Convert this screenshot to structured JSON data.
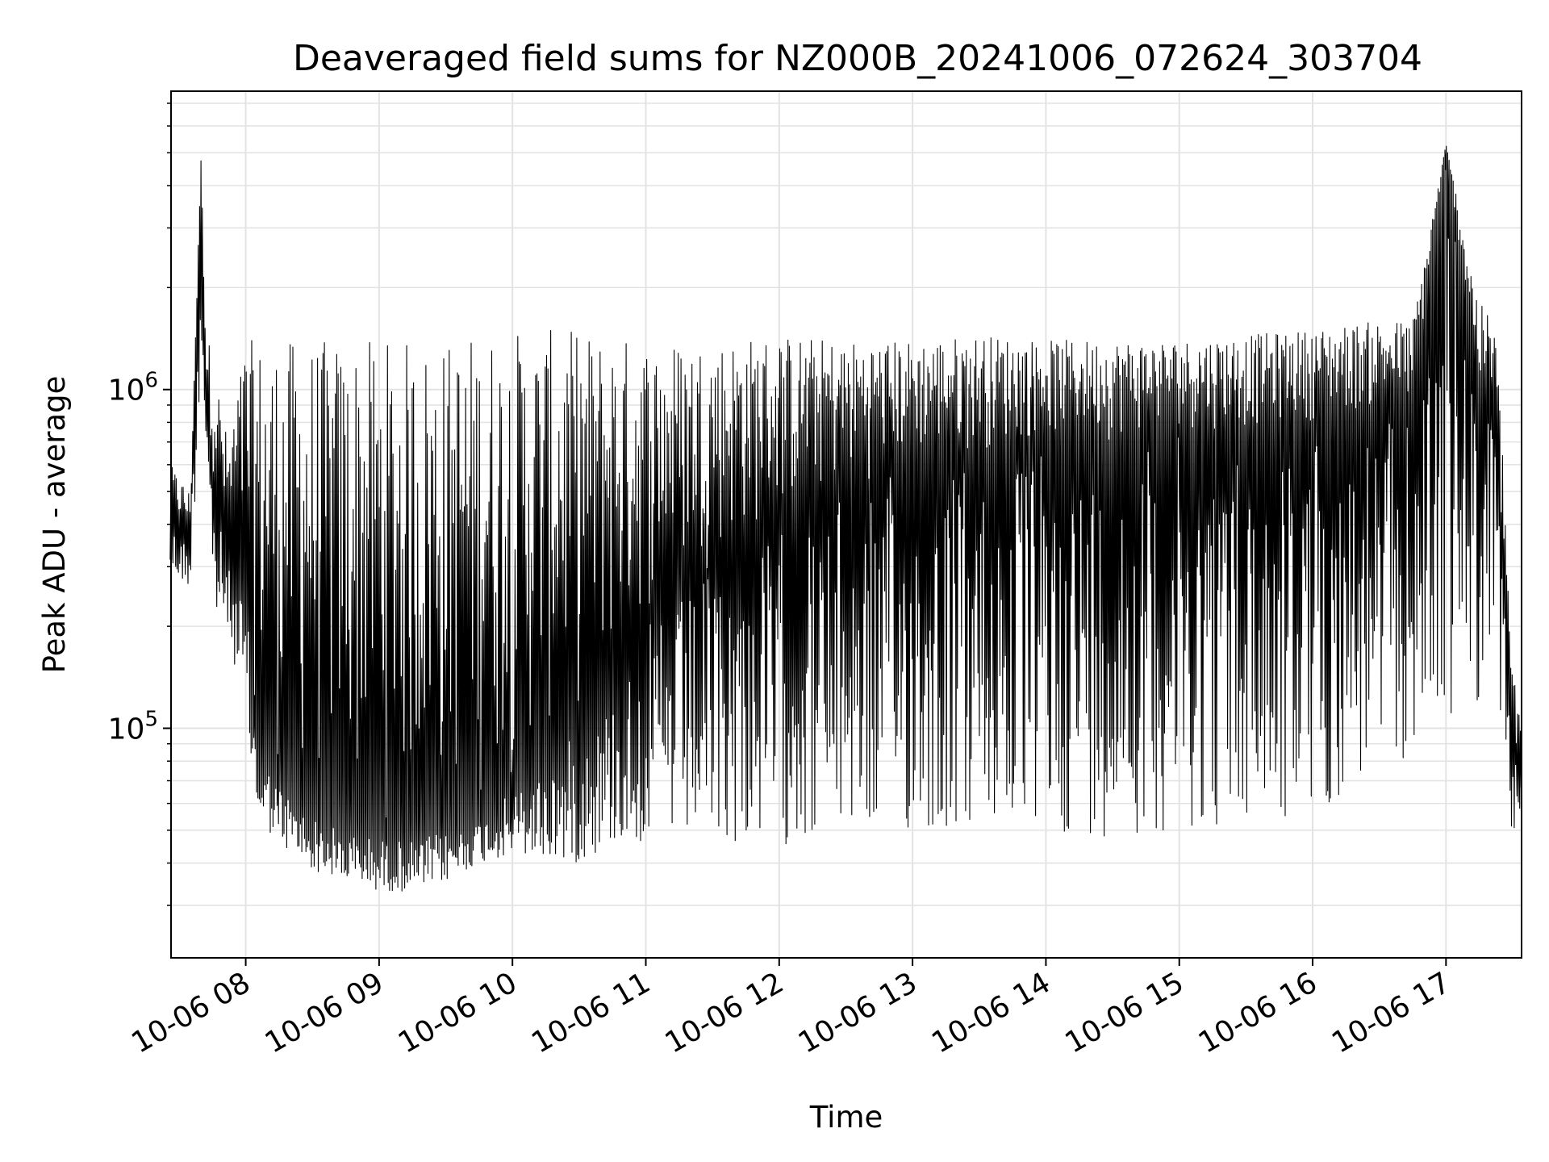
{
  "chart_data": {
    "type": "line",
    "title": "Deaveraged field sums for NZ000B_20241006_072624_303704",
    "xlabel": "Time",
    "ylabel": "Peak ADU - average",
    "xscale": "time",
    "yscale": "log",
    "xlim": [
      "2024-10-06T07:26:24",
      "2024-10-06T17:34:00"
    ],
    "ylim": [
      21000,
      7600000
    ],
    "grid": true,
    "line_color": "#000000",
    "x_ticks": [
      {
        "t": "2024-10-06T08:00",
        "label": "10-06 08"
      },
      {
        "t": "2024-10-06T09:00",
        "label": "10-06 09"
      },
      {
        "t": "2024-10-06T10:00",
        "label": "10-06 10"
      },
      {
        "t": "2024-10-06T11:00",
        "label": "10-06 11"
      },
      {
        "t": "2024-10-06T12:00",
        "label": "10-06 12"
      },
      {
        "t": "2024-10-06T13:00",
        "label": "10-06 13"
      },
      {
        "t": "2024-10-06T14:00",
        "label": "10-06 14"
      },
      {
        "t": "2024-10-06T15:00",
        "label": "10-06 15"
      },
      {
        "t": "2024-10-06T16:00",
        "label": "10-06 16"
      },
      {
        "t": "2024-10-06T17:00",
        "label": "10-06 17"
      }
    ],
    "y_ticks": [
      {
        "value": 100000,
        "base": "10",
        "exp": "5"
      },
      {
        "value": 1000000,
        "base": "10",
        "exp": "6"
      }
    ],
    "series": [
      {
        "x": [
          "2024-10-06T07:26",
          "2024-10-06T07:35",
          "2024-10-06T07:40",
          "2024-10-06T07:42",
          "2024-10-06T07:46",
          "2024-10-06T07:52",
          "2024-10-06T08:00",
          "2024-10-06T08:05",
          "2024-10-06T08:15",
          "2024-10-06T08:30",
          "2024-10-06T08:45",
          "2024-10-06T09:00",
          "2024-10-06T09:15",
          "2024-10-06T09:30",
          "2024-10-06T09:45",
          "2024-10-06T10:00",
          "2024-10-06T10:15",
          "2024-10-06T10:30",
          "2024-10-06T10:45",
          "2024-10-06T11:00",
          "2024-10-06T11:30",
          "2024-10-06T12:00",
          "2024-10-06T12:30",
          "2024-10-06T13:00",
          "2024-10-06T13:30",
          "2024-10-06T14:00",
          "2024-10-06T14:30",
          "2024-10-06T15:00",
          "2024-10-06T15:30",
          "2024-10-06T16:00",
          "2024-10-06T16:30",
          "2024-10-06T16:45",
          "2024-10-06T17:00",
          "2024-10-06T17:15",
          "2024-10-06T17:22",
          "2024-10-06T17:26",
          "2024-10-06T17:30",
          "2024-10-06T17:34"
        ],
        "y": [
          420000,
          350000,
          5000000,
          1000000,
          500000,
          300000,
          250000,
          90000,
          70000,
          55000,
          50000,
          48000,
          47000,
          50000,
          55000,
          65000,
          80000,
          100000,
          130000,
          200000,
          300000,
          400000,
          500000,
          600000,
          650000,
          700000,
          700000,
          750000,
          750000,
          800000,
          850000,
          850000,
          5300000,
          900000,
          850000,
          250000,
          80000,
          75000
        ],
        "upper": [
          600000,
          500000,
          5000000,
          1500000,
          1200000,
          700000,
          1400000,
          1400000,
          1400000,
          1400000,
          1400000,
          1400000,
          1400000,
          1400000,
          1500000,
          1500000,
          1500000,
          1500000,
          1450000,
          1400000,
          1400000,
          1450000,
          1400000,
          1400000,
          1450000,
          1400000,
          1400000,
          1400000,
          1450000,
          1500000,
          1600000,
          1600000,
          5300000,
          1800000,
          1600000,
          600000,
          150000,
          100000
        ],
        "lower": [
          280000,
          260000,
          1000000,
          700000,
          200000,
          200000,
          100000,
          55000,
          45000,
          38000,
          35000,
          33000,
          33000,
          35000,
          40000,
          42000,
          40000,
          40000,
          45000,
          45000,
          45000,
          45000,
          48000,
          48000,
          48000,
          48000,
          48000,
          50000,
          50000,
          52000,
          75000,
          80000,
          100000,
          120000,
          200000,
          80000,
          45000,
          60000
        ]
      }
    ]
  }
}
